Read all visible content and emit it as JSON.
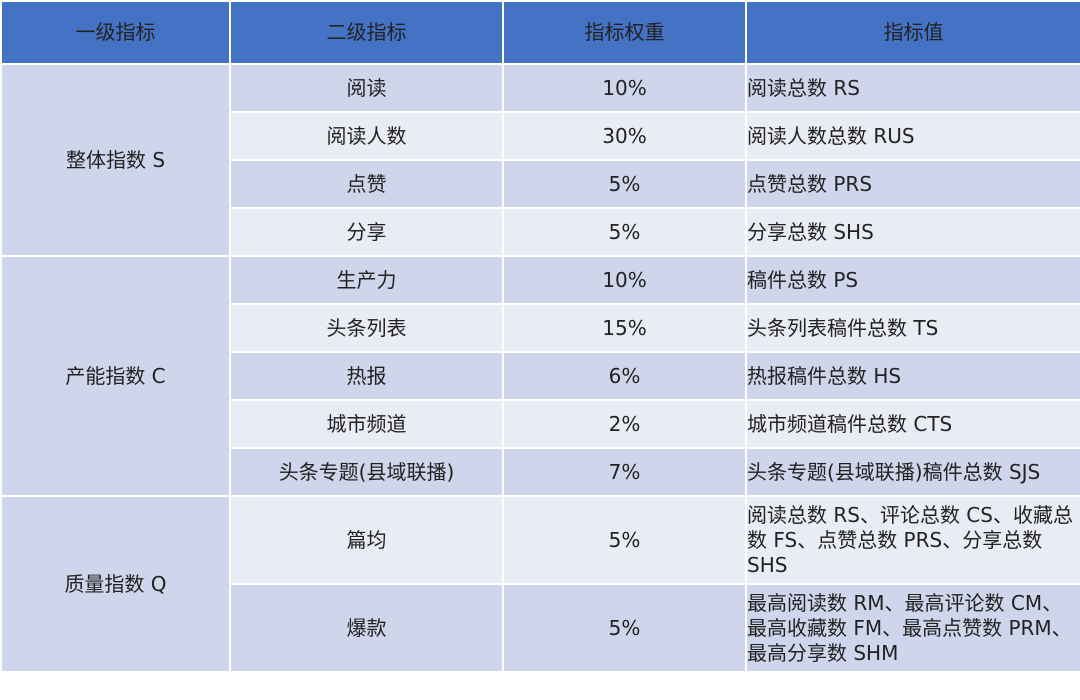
{
  "headers": [
    "一级指标",
    "二级指标",
    "指标权重",
    "指标值"
  ],
  "groups": [
    {
      "level1": "整体指数 S",
      "rows": [
        {
          "level2": "阅读",
          "weight": "10%",
          "value": "阅读总数 RS"
        },
        {
          "level2": "阅读人数",
          "weight": "30%",
          "value": "阅读人数总数 RUS"
        },
        {
          "level2": "点赞",
          "weight": "5%",
          "value": "点赞总数 PRS"
        },
        {
          "level2": "分享",
          "weight": "5%",
          "value": "分享总数 SHS"
        }
      ]
    },
    {
      "level1": "产能指数 C",
      "rows": [
        {
          "level2": "生产力",
          "weight": "10%",
          "value": "稿件总数 PS"
        },
        {
          "level2": "头条列表",
          "weight": "15%",
          "value": "头条列表稿件总数 TS"
        },
        {
          "level2": "热报",
          "weight": "6%",
          "value": "热报稿件总数 HS"
        },
        {
          "level2": "城市频道",
          "weight": "2%",
          "value": "城市频道稿件总数 CTS"
        },
        {
          "level2": "头条专题(县域联播)",
          "weight": "7%",
          "value": "头条专题(县域联播)稿件总数 SJS"
        }
      ]
    },
    {
      "level1": "质量指数 Q",
      "rows": [
        {
          "level2": "篇均",
          "weight": "5%",
          "value": "阅读总数 RS、评论总数 CS、收藏总数 FS、点赞总数 PRS、分享总数 SHS"
        },
        {
          "level2": "爆款",
          "weight": "5%",
          "value": "最高阅读数 RM、最高评论数 CM、最高收藏数 FM、最高点赞数 PRM、最高分享数 SHM"
        }
      ]
    }
  ],
  "colors": {
    "header": "#4472c4",
    "row_dark": "#cfd5ea",
    "row_light": "#e9ebf5"
  }
}
